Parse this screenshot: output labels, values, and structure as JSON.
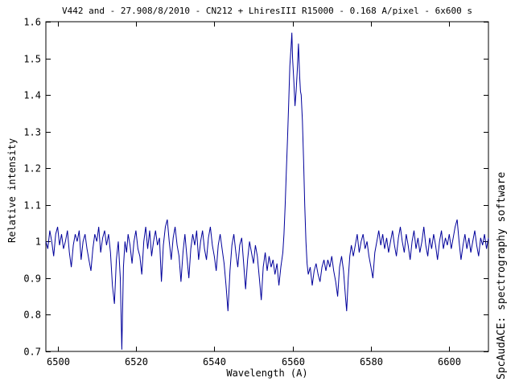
{
  "chart_data": {
    "type": "line",
    "title": "V442 and - 27.908/8/2010 - CN212 + LhiresIII R15000 - 0.168 A/pixel - 6x600 s",
    "xlabel": "Wavelength (A)",
    "ylabel": "Relative intensity",
    "watermark": "SpcAudACE: spectrography software",
    "xlim": [
      6497,
      6610
    ],
    "ylim": [
      0.7,
      1.6
    ],
    "xticks": [
      6500,
      6520,
      6540,
      6560,
      6580,
      6600
    ],
    "xtick_labels": [
      "6500",
      "6520",
      "6540",
      "6560",
      "6580",
      "6600"
    ],
    "yticks": [
      0.7,
      0.8,
      0.9,
      1.0,
      1.1,
      1.2,
      1.3,
      1.4,
      1.5,
      1.6
    ],
    "ytick_labels": [
      "0.7",
      "0.8",
      "0.9",
      "1",
      "1.1",
      "1.2",
      "1.3",
      "1.4",
      "1.5",
      "1.6"
    ],
    "grid": false,
    "legend": null,
    "style": {
      "background": "#ffffff",
      "line_color": "#00009b",
      "frame_color": "#000000",
      "text_color": "#000000"
    },
    "series": [
      {
        "name": "spectrum",
        "points": [
          [
            6497.0,
            1.0
          ],
          [
            6497.5,
            0.98
          ],
          [
            6498.0,
            1.03
          ],
          [
            6498.5,
            1.0
          ],
          [
            6499.0,
            0.96
          ],
          [
            6499.5,
            1.02
          ],
          [
            6500.0,
            1.04
          ],
          [
            6500.5,
            0.99
          ],
          [
            6501.0,
            1.02
          ],
          [
            6501.5,
            0.98
          ],
          [
            6502.0,
            1.0
          ],
          [
            6502.5,
            1.03
          ],
          [
            6503.0,
            0.97
          ],
          [
            6503.5,
            0.93
          ],
          [
            6504.0,
            0.99
          ],
          [
            6504.5,
            1.02
          ],
          [
            6505.0,
            1.0
          ],
          [
            6505.5,
            1.03
          ],
          [
            6506.0,
            0.95
          ],
          [
            6506.5,
            1.0
          ],
          [
            6507.0,
            1.02
          ],
          [
            6507.5,
            0.98
          ],
          [
            6508.0,
            0.95
          ],
          [
            6508.5,
            0.92
          ],
          [
            6509.0,
            0.98
          ],
          [
            6509.5,
            1.02
          ],
          [
            6510.0,
            1.0
          ],
          [
            6510.5,
            1.04
          ],
          [
            6511.0,
            0.97
          ],
          [
            6511.5,
            1.01
          ],
          [
            6512.0,
            1.03
          ],
          [
            6512.5,
            0.99
          ],
          [
            6513.0,
            1.02
          ],
          [
            6513.5,
            0.97
          ],
          [
            6514.0,
            0.88
          ],
          [
            6514.5,
            0.83
          ],
          [
            6515.0,
            0.95
          ],
          [
            6515.5,
            1.0
          ],
          [
            6516.0,
            0.9
          ],
          [
            6516.4,
            0.705
          ],
          [
            6516.8,
            0.93
          ],
          [
            6517.2,
            1.0
          ],
          [
            6517.6,
            0.97
          ],
          [
            6518.0,
            1.02
          ],
          [
            6518.5,
            0.99
          ],
          [
            6519.0,
            0.94
          ],
          [
            6519.5,
            1.0
          ],
          [
            6520.0,
            1.03
          ],
          [
            6520.5,
            0.98
          ],
          [
            6521.0,
            0.96
          ],
          [
            6521.5,
            0.91
          ],
          [
            6522.0,
            1.0
          ],
          [
            6522.5,
            1.04
          ],
          [
            6523.0,
            0.98
          ],
          [
            6523.5,
            1.03
          ],
          [
            6524.0,
            0.96
          ],
          [
            6524.5,
            1.0
          ],
          [
            6525.0,
            1.03
          ],
          [
            6525.5,
            0.99
          ],
          [
            6526.0,
            1.01
          ],
          [
            6526.5,
            0.89
          ],
          [
            6527.0,
            0.99
          ],
          [
            6527.5,
            1.04
          ],
          [
            6528.0,
            1.06
          ],
          [
            6528.5,
            1.0
          ],
          [
            6529.0,
            0.95
          ],
          [
            6529.5,
            1.01
          ],
          [
            6530.0,
            1.04
          ],
          [
            6530.5,
            0.99
          ],
          [
            6531.0,
            0.96
          ],
          [
            6531.5,
            0.89
          ],
          [
            6532.0,
            0.97
          ],
          [
            6532.5,
            1.02
          ],
          [
            6533.0,
            0.96
          ],
          [
            6533.5,
            0.9
          ],
          [
            6534.0,
            0.98
          ],
          [
            6534.5,
            1.02
          ],
          [
            6535.0,
            0.99
          ],
          [
            6535.5,
            1.03
          ],
          [
            6536.0,
            0.95
          ],
          [
            6536.5,
            1.0
          ],
          [
            6537.0,
            1.03
          ],
          [
            6537.5,
            0.98
          ],
          [
            6538.0,
            0.95
          ],
          [
            6538.5,
            1.01
          ],
          [
            6539.0,
            1.04
          ],
          [
            6539.5,
            0.99
          ],
          [
            6540.0,
            0.96
          ],
          [
            6540.5,
            0.92
          ],
          [
            6541.0,
            0.99
          ],
          [
            6541.5,
            1.02
          ],
          [
            6542.0,
            0.98
          ],
          [
            6542.5,
            0.94
          ],
          [
            6543.0,
            0.88
          ],
          [
            6543.5,
            0.81
          ],
          [
            6544.0,
            0.92
          ],
          [
            6544.5,
            0.99
          ],
          [
            6545.0,
            1.02
          ],
          [
            6545.5,
            0.97
          ],
          [
            6546.0,
            0.93
          ],
          [
            6546.5,
            0.99
          ],
          [
            6547.0,
            1.01
          ],
          [
            6547.5,
            0.94
          ],
          [
            6548.0,
            0.87
          ],
          [
            6548.5,
            0.95
          ],
          [
            6549.0,
            1.0
          ],
          [
            6549.5,
            0.97
          ],
          [
            6550.0,
            0.94
          ],
          [
            6550.5,
            0.99
          ],
          [
            6551.0,
            0.96
          ],
          [
            6551.5,
            0.9
          ],
          [
            6552.0,
            0.84
          ],
          [
            6552.5,
            0.93
          ],
          [
            6553.0,
            0.97
          ],
          [
            6553.5,
            0.92
          ],
          [
            6554.0,
            0.96
          ],
          [
            6554.5,
            0.93
          ],
          [
            6555.0,
            0.95
          ],
          [
            6555.5,
            0.91
          ],
          [
            6556.0,
            0.94
          ],
          [
            6556.5,
            0.88
          ],
          [
            6557.0,
            0.93
          ],
          [
            6557.5,
            0.97
          ],
          [
            6557.8,
            1.02
          ],
          [
            6558.1,
            1.1
          ],
          [
            6558.4,
            1.19
          ],
          [
            6558.7,
            1.28
          ],
          [
            6559.0,
            1.38
          ],
          [
            6559.3,
            1.48
          ],
          [
            6559.6,
            1.53
          ],
          [
            6559.8,
            1.57
          ],
          [
            6560.0,
            1.5
          ],
          [
            6560.3,
            1.44
          ],
          [
            6560.6,
            1.37
          ],
          [
            6560.9,
            1.41
          ],
          [
            6561.2,
            1.47
          ],
          [
            6561.5,
            1.54
          ],
          [
            6561.8,
            1.45
          ],
          [
            6562.0,
            1.41
          ],
          [
            6562.2,
            1.4
          ],
          [
            6562.5,
            1.33
          ],
          [
            6562.8,
            1.22
          ],
          [
            6563.1,
            1.1
          ],
          [
            6563.4,
            1.0
          ],
          [
            6563.7,
            0.94
          ],
          [
            6564.0,
            0.91
          ],
          [
            6564.5,
            0.93
          ],
          [
            6565.0,
            0.88
          ],
          [
            6565.5,
            0.92
          ],
          [
            6566.0,
            0.94
          ],
          [
            6566.5,
            0.91
          ],
          [
            6567.0,
            0.89
          ],
          [
            6567.5,
            0.93
          ],
          [
            6568.0,
            0.95
          ],
          [
            6568.5,
            0.92
          ],
          [
            6569.0,
            0.95
          ],
          [
            6569.5,
            0.93
          ],
          [
            6570.0,
            0.96
          ],
          [
            6570.5,
            0.92
          ],
          [
            6571.0,
            0.89
          ],
          [
            6571.5,
            0.85
          ],
          [
            6572.0,
            0.93
          ],
          [
            6572.5,
            0.96
          ],
          [
            6573.0,
            0.92
          ],
          [
            6573.5,
            0.85
          ],
          [
            6573.8,
            0.81
          ],
          [
            6574.2,
            0.9
          ],
          [
            6574.6,
            0.96
          ],
          [
            6575.0,
            0.99
          ],
          [
            6575.5,
            0.96
          ],
          [
            6576.0,
            0.99
          ],
          [
            6576.5,
            1.02
          ],
          [
            6577.0,
            0.97
          ],
          [
            6577.5,
            1.0
          ],
          [
            6578.0,
            1.02
          ],
          [
            6578.5,
            0.98
          ],
          [
            6579.0,
            1.0
          ],
          [
            6579.5,
            0.96
          ],
          [
            6580.0,
            0.93
          ],
          [
            6580.5,
            0.9
          ],
          [
            6581.0,
            0.97
          ],
          [
            6581.5,
            1.0
          ],
          [
            6582.0,
            1.03
          ],
          [
            6582.5,
            0.99
          ],
          [
            6583.0,
            1.02
          ],
          [
            6583.5,
            0.98
          ],
          [
            6584.0,
            1.01
          ],
          [
            6584.5,
            0.97
          ],
          [
            6585.0,
            1.0
          ],
          [
            6585.5,
            1.03
          ],
          [
            6586.0,
            0.99
          ],
          [
            6586.5,
            0.96
          ],
          [
            6587.0,
            1.01
          ],
          [
            6587.5,
            1.04
          ],
          [
            6588.0,
            1.0
          ],
          [
            6588.5,
            0.97
          ],
          [
            6589.0,
            1.02
          ],
          [
            6589.5,
            0.99
          ],
          [
            6590.0,
            0.95
          ],
          [
            6590.5,
            1.0
          ],
          [
            6591.0,
            1.03
          ],
          [
            6591.5,
            0.98
          ],
          [
            6592.0,
            1.01
          ],
          [
            6592.5,
            0.97
          ],
          [
            6593.0,
            1.0
          ],
          [
            6593.5,
            1.04
          ],
          [
            6594.0,
            0.99
          ],
          [
            6594.5,
            0.96
          ],
          [
            6595.0,
            1.01
          ],
          [
            6595.5,
            0.98
          ],
          [
            6596.0,
            1.02
          ],
          [
            6596.5,
            0.99
          ],
          [
            6597.0,
            0.95
          ],
          [
            6597.5,
            1.0
          ],
          [
            6598.0,
            1.03
          ],
          [
            6598.5,
            0.98
          ],
          [
            6599.0,
            1.01
          ],
          [
            6599.5,
            0.99
          ],
          [
            6600.0,
            1.02
          ],
          [
            6600.5,
            0.98
          ],
          [
            6601.0,
            1.01
          ],
          [
            6601.5,
            1.04
          ],
          [
            6602.0,
            1.06
          ],
          [
            6602.5,
            1.0
          ],
          [
            6603.0,
            0.95
          ],
          [
            6603.5,
            0.99
          ],
          [
            6604.0,
            1.02
          ],
          [
            6604.5,
            0.98
          ],
          [
            6605.0,
            1.01
          ],
          [
            6605.5,
            0.97
          ],
          [
            6606.0,
            1.0
          ],
          [
            6606.5,
            1.03
          ],
          [
            6607.0,
            0.99
          ],
          [
            6607.5,
            0.96
          ],
          [
            6608.0,
            1.01
          ],
          [
            6608.5,
            0.99
          ],
          [
            6609.0,
            1.02
          ],
          [
            6609.5,
            0.98
          ],
          [
            6610.0,
            1.01
          ]
        ]
      }
    ]
  }
}
